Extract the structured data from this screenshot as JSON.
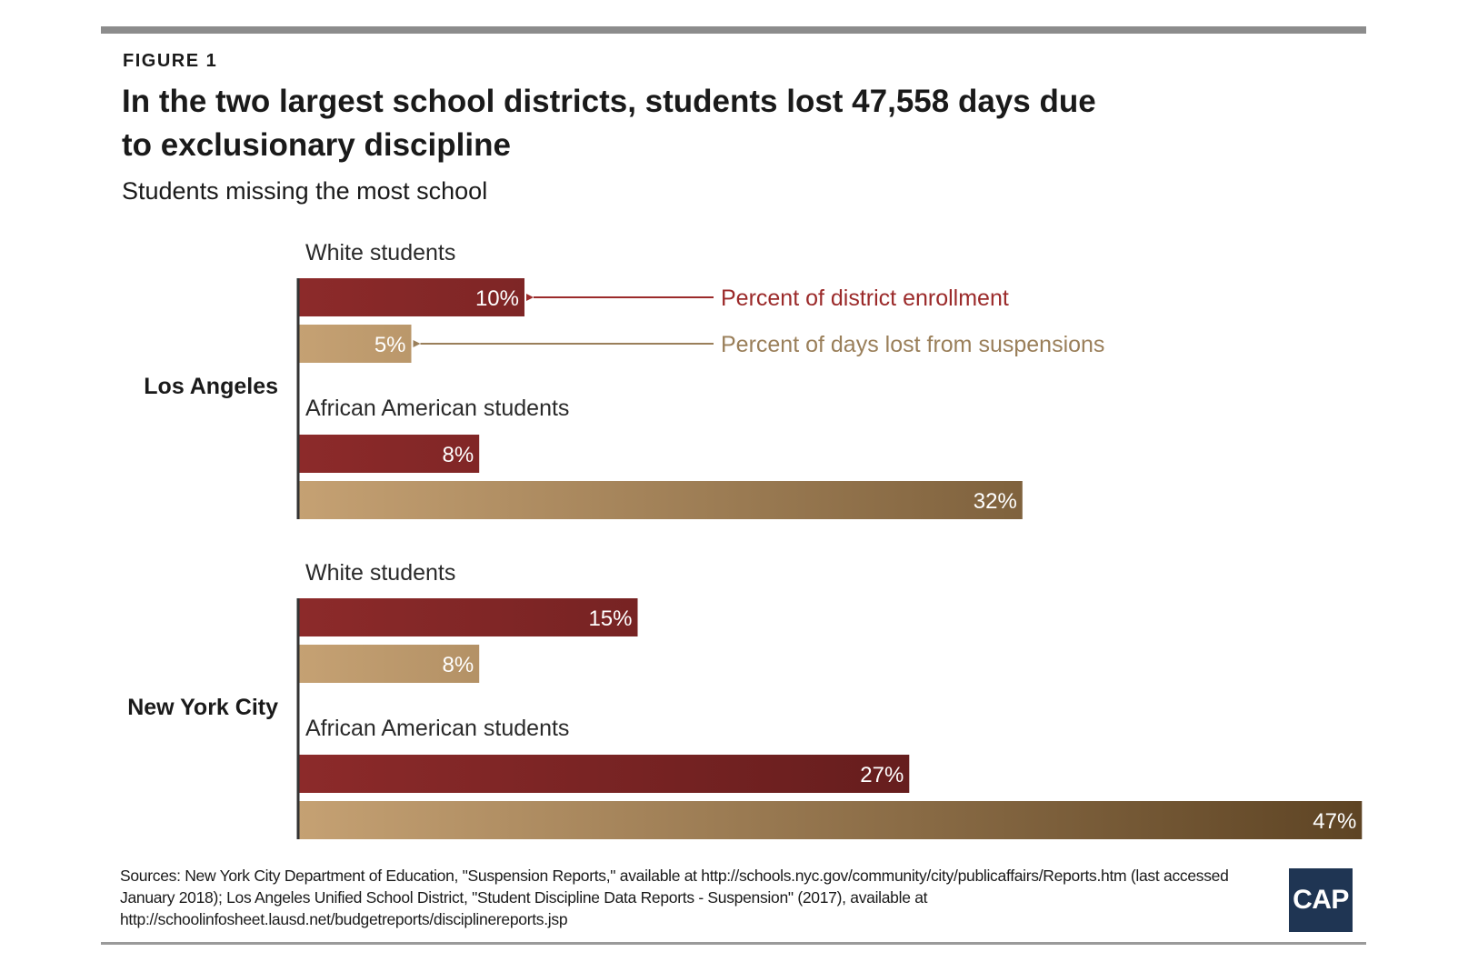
{
  "figure_label": "FIGURE 1",
  "title": "In the two largest school districts, students lost 47,558 days due to exclusionary discipline",
  "subtitle": "Students missing the most school",
  "sources": "Sources: New York City Department of Education, \"Suspension Reports,\" available at http://schools.nyc.gov/community/city/publicaffairs/Reports.htm (last accessed January 2018); Los Angeles Unified School District, \"Student Discipline Data Reports - Suspension\" (2017), available at http://schoolinfosheet.lausd.net/budgetreports/disciplinereports.jsp",
  "logo_text": "CAP",
  "colors": {
    "enrollment_start": "#8c2a2a",
    "enrollment_end": "#4a1414",
    "days_start": "#c5a173",
    "days_end": "#5e4424",
    "enrollment_label": "#9b2a2a",
    "days_label": "#9a7f5a"
  },
  "chart_data": {
    "type": "bar",
    "orientation": "horizontal",
    "series": [
      {
        "name": "Percent of district enrollment",
        "key": "enrollment"
      },
      {
        "name": "Percent of days lost from suspensions",
        "key": "days"
      }
    ],
    "groups": [
      {
        "name": "Los Angeles",
        "subgroups": [
          {
            "label": "White students",
            "enrollment": 10,
            "days": 5
          },
          {
            "label": "African American students",
            "enrollment": 8,
            "days": 32
          }
        ]
      },
      {
        "name": "New York City",
        "subgroups": [
          {
            "label": "White students",
            "enrollment": 15,
            "days": 8
          },
          {
            "label": "African American students",
            "enrollment": 27,
            "days": 47
          }
        ]
      }
    ],
    "value_suffix": "%",
    "annotations": [
      {
        "text": "Percent of district enrollment",
        "series": "enrollment",
        "group": 0,
        "subgroup": 0
      },
      {
        "text": "Percent of days lost from suspensions",
        "series": "days",
        "group": 0,
        "subgroup": 0
      }
    ]
  }
}
